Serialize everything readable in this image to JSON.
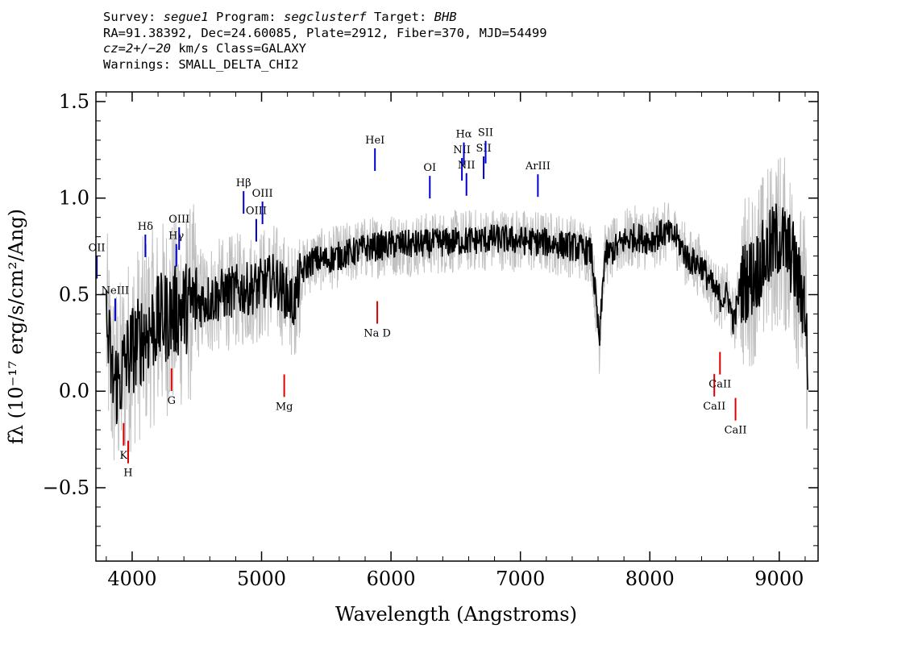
{
  "header": {
    "survey_label": "Survey: ",
    "survey": "segue1",
    "program_label": " Program: ",
    "program": "segclusterf",
    "target_label": " Target: ",
    "target": "BHB",
    "line2": "RA=91.38392, Dec=24.60085, Plate=2912, Fiber=370, MJD=54499",
    "cz_label": "cz=2+/−20",
    "cz_rest": " km/s Class=GALAXY",
    "warnings": "Warnings: SMALL_DELTA_CHI2"
  },
  "chart_data": {
    "type": "line",
    "xlabel": "Wavelength (Angstroms)",
    "ylabel": "fλ (10⁻¹⁷ erg/s/cm²/Ang)",
    "xlim": [
      3720,
      9300
    ],
    "ylim": [
      -0.88,
      1.55
    ],
    "x_ticks": [
      4000,
      5000,
      6000,
      7000,
      8000,
      9000
    ],
    "x_tick_labels": [
      "4000",
      "5000",
      "6000",
      "7000",
      "8000",
      "9000"
    ],
    "y_ticks": [
      -0.5,
      0.0,
      0.5,
      1.0,
      1.5
    ],
    "y_tick_labels": [
      "−0.5",
      "0.0",
      "0.5",
      "1.0",
      "1.5"
    ],
    "grid": false,
    "series": [
      {
        "color": "#000000",
        "x": [
          3800,
          3850,
          3900,
          3950,
          4000,
          4050,
          4100,
          4150,
          4200,
          4300,
          4400,
          4500,
          4600,
          4700,
          4800,
          4900,
          5000,
          5100,
          5200,
          5250,
          5300,
          5350,
          5400,
          5500,
          5600,
          5700,
          5800,
          5900,
          6000,
          6200,
          6400,
          6600,
          6800,
          7000,
          7200,
          7400,
          7550,
          7610,
          7650,
          7700,
          7800,
          7900,
          8000,
          8100,
          8200,
          8300,
          8400,
          8500,
          8550,
          8600,
          8650,
          8700,
          8800,
          8900,
          9000,
          9100,
          9150,
          9200,
          9220
        ],
        "y": [
          0.35,
          0.05,
          0.05,
          0.15,
          0.22,
          0.25,
          0.3,
          0.33,
          0.36,
          0.4,
          0.43,
          0.46,
          0.48,
          0.5,
          0.52,
          0.53,
          0.55,
          0.58,
          0.5,
          0.45,
          0.6,
          0.65,
          0.68,
          0.68,
          0.7,
          0.72,
          0.74,
          0.75,
          0.76,
          0.76,
          0.77,
          0.78,
          0.79,
          0.78,
          0.77,
          0.75,
          0.72,
          0.25,
          0.7,
          0.72,
          0.78,
          0.8,
          0.78,
          0.82,
          0.8,
          0.68,
          0.65,
          0.52,
          0.48,
          0.5,
          0.35,
          0.55,
          0.6,
          0.7,
          0.8,
          0.7,
          0.55,
          0.45,
          0.12
        ]
      },
      {
        "color": "#c0c0c0",
        "x": [
          3800,
          3950,
          4200,
          4600,
          5000,
          5300,
          6000,
          7000,
          8000,
          8500,
          9000,
          9220
        ],
        "y": [
          0.35,
          0.15,
          0.36,
          0.48,
          0.55,
          0.6,
          0.76,
          0.78,
          0.78,
          0.52,
          0.8,
          0.12
        ]
      }
    ],
    "emission_lines": [
      {
        "label": "OII",
        "x": 3727,
        "color": "#0000cc"
      },
      {
        "label": "NeIII",
        "x": 3869,
        "color": "#0000cc"
      },
      {
        "label": "Hδ",
        "x": 4102,
        "color": "#0000cc"
      },
      {
        "label": "Hγ",
        "x": 4341,
        "color": "#0000cc"
      },
      {
        "label": "OIII",
        "x": 4363,
        "color": "#0000cc"
      },
      {
        "label": "Hβ",
        "x": 4861,
        "color": "#0000cc"
      },
      {
        "label": "OIII",
        "x": 4959,
        "color": "#0000cc"
      },
      {
        "label": "OIII",
        "x": 5007,
        "color": "#0000cc"
      },
      {
        "label": "HeI",
        "x": 5876,
        "color": "#0000cc"
      },
      {
        "label": "OI",
        "x": 6300,
        "color": "#0000cc"
      },
      {
        "label": "NII",
        "x": 6548,
        "color": "#0000cc"
      },
      {
        "label": "Hα",
        "x": 6563,
        "color": "#0000cc"
      },
      {
        "label": "NII",
        "x": 6583,
        "color": "#0000cc"
      },
      {
        "label": "SII",
        "x": 6716,
        "color": "#0000cc"
      },
      {
        "label": "SII",
        "x": 6731,
        "color": "#0000cc"
      },
      {
        "label": "ArIII",
        "x": 7135,
        "color": "#0000cc"
      }
    ],
    "absorption_lines": [
      {
        "label": "K",
        "x": 3934,
        "color": "#dd0000"
      },
      {
        "label": "H",
        "x": 3969,
        "color": "#dd0000"
      },
      {
        "label": "G",
        "x": 4304,
        "color": "#dd0000"
      },
      {
        "label": "Mg",
        "x": 5175,
        "color": "#dd0000"
      },
      {
        "label": "Na D",
        "x": 5894,
        "color": "#dd0000"
      },
      {
        "label": "CaII",
        "x": 8498,
        "color": "#dd0000"
      },
      {
        "label": "CaII",
        "x": 8542,
        "color": "#dd0000"
      },
      {
        "label": "CaII",
        "x": 8662,
        "color": "#dd0000"
      }
    ]
  }
}
